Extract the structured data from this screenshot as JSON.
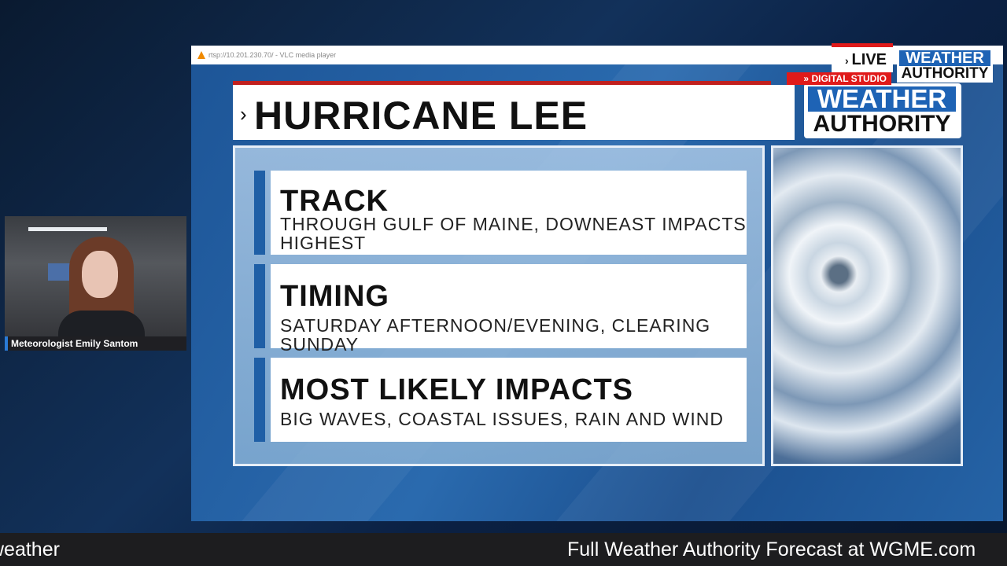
{
  "player": {
    "title": "rtsp://10.201.230.70/ - VLC media player"
  },
  "badge": {
    "live": "LIVE",
    "logo_top": "WEATHER",
    "logo_bottom": "AUTHORITY",
    "studio": "DIGITAL STUDIO"
  },
  "graphic": {
    "title": "HURRICANE LEE",
    "logo_top": "WEATHER",
    "logo_bottom": "AUTHORITY",
    "cards": [
      {
        "heading": "TRACK",
        "text": "THROUGH GULF OF MAINE, DOWNEAST IMPACTS HIGHEST"
      },
      {
        "heading": "TIMING",
        "text": "SATURDAY AFTERNOON/EVENING, CLEARING SUNDAY"
      },
      {
        "heading": "MOST LIKELY IMPACTS",
        "text": "BIG WAVES, COASTAL ISSUES, RAIN AND WIND"
      }
    ]
  },
  "presenter": {
    "name": "Meteorologist Emily Santom"
  },
  "ticker": {
    "left": "weather",
    "right": "Full Weather Authority Forecast at WGME.com"
  }
}
